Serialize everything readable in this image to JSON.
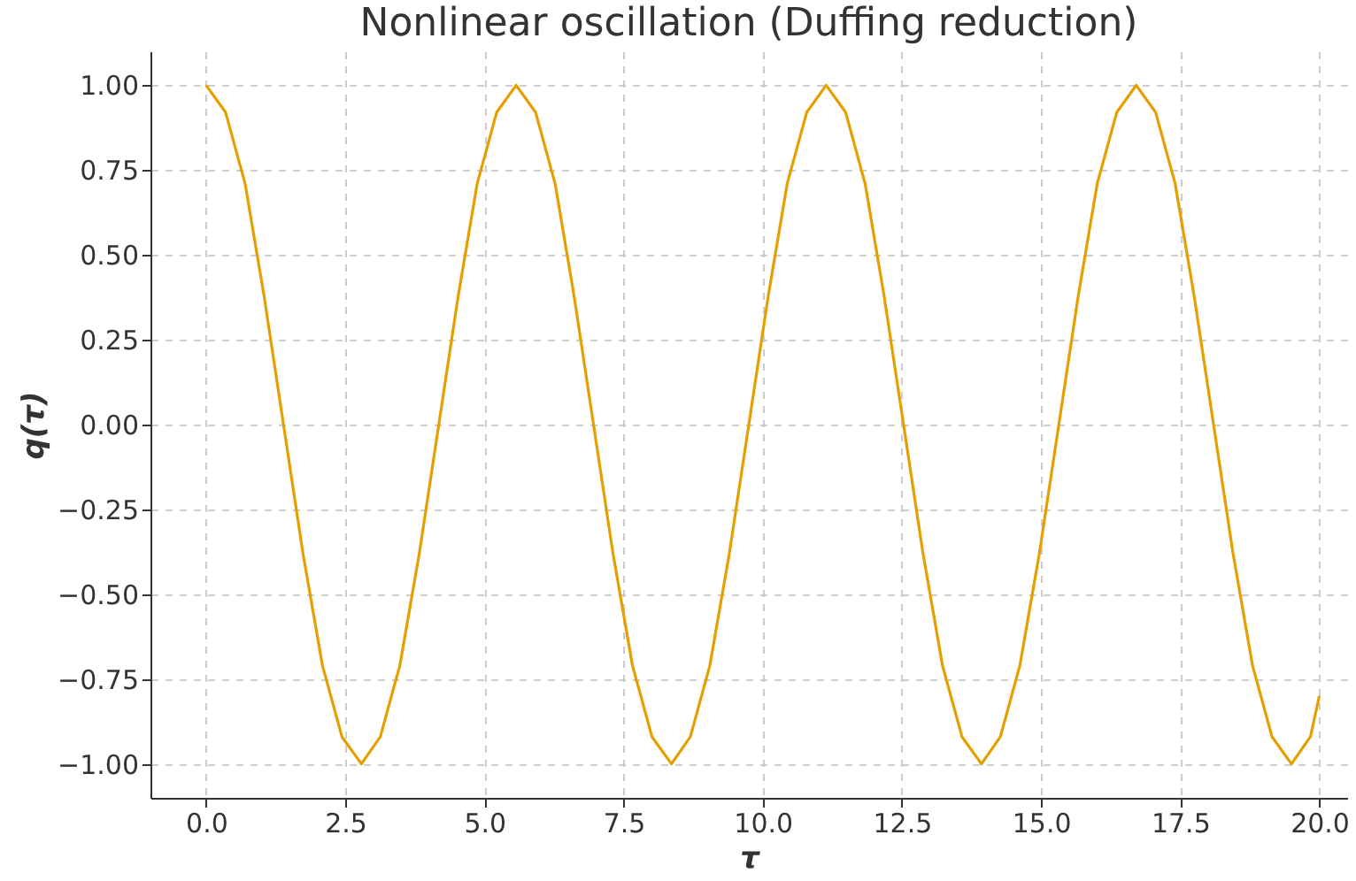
{
  "chart_data": {
    "type": "line",
    "title": "Nonlinear oscillation (Duffing reduction)",
    "xlabel": "τ",
    "ylabel": "q(τ)",
    "x": [
      0,
      0.35,
      0.7,
      1.04,
      1.39,
      1.74,
      2.09,
      2.44,
      2.79,
      3.13,
      3.48,
      3.83,
      4.18,
      4.53,
      4.87,
      5.22,
      5.57,
      5.92,
      6.27,
      6.61,
      6.96,
      7.31,
      7.66,
      8.01,
      8.36,
      8.7,
      9.05,
      9.4,
      9.75,
      10.1,
      10.44,
      10.79,
      11.14,
      11.49,
      11.84,
      12.18,
      12.53,
      12.88,
      13.23,
      13.58,
      13.93,
      14.27,
      14.62,
      14.97,
      15.32,
      15.67,
      16.01,
      16.36,
      16.71,
      17.06,
      17.41,
      17.75,
      18.1,
      18.45,
      18.8,
      19.15,
      19.5,
      19.84,
      20.0
    ],
    "series": [
      {
        "color": "#e69f00",
        "values": [
          1,
          0.92,
          0.71,
          0.38,
          0,
          -0.38,
          -0.71,
          -0.92,
          -1,
          -0.92,
          -0.71,
          -0.38,
          0,
          0.38,
          0.71,
          0.92,
          1,
          0.92,
          0.71,
          0.38,
          0,
          -0.38,
          -0.71,
          -0.92,
          -1,
          -0.92,
          -0.71,
          -0.38,
          0,
          0.38,
          0.71,
          0.92,
          1,
          0.92,
          0.71,
          0.38,
          0,
          -0.38,
          -0.71,
          -0.92,
          -1,
          -0.92,
          -0.71,
          -0.38,
          0,
          0.38,
          0.71,
          0.92,
          1,
          0.92,
          0.71,
          0.38,
          0,
          -0.38,
          -0.71,
          -0.92,
          -1,
          -0.92,
          -0.8
        ]
      }
    ],
    "xlim": [
      -1,
      20.5
    ],
    "xticks": [
      {
        "value": 0,
        "label": "0.0"
      },
      {
        "value": 2.5,
        "label": "2.5"
      },
      {
        "value": 5,
        "label": "5.0"
      },
      {
        "value": 7.5,
        "label": "7.5"
      },
      {
        "value": 10,
        "label": "10.0"
      },
      {
        "value": 12.5,
        "label": "12.5"
      },
      {
        "value": 15,
        "label": "15.0"
      },
      {
        "value": 17.5,
        "label": "17.5"
      },
      {
        "value": 20,
        "label": "20.0"
      }
    ],
    "ylim": [
      -1.1,
      1.1
    ],
    "yticks": [
      {
        "value": -1,
        "label": "−1.00"
      },
      {
        "value": -0.75,
        "label": "−0.75"
      },
      {
        "value": -0.5,
        "label": "−0.50"
      },
      {
        "value": -0.25,
        "label": "−0.25"
      },
      {
        "value": 0,
        "label": "0.00"
      },
      {
        "value": 0.25,
        "label": "0.25"
      },
      {
        "value": 0.5,
        "label": "0.50"
      },
      {
        "value": 0.75,
        "label": "0.75"
      },
      {
        "value": 1,
        "label": "1.00"
      }
    ],
    "grid": true,
    "line_style": "solid",
    "marker": "none"
  }
}
